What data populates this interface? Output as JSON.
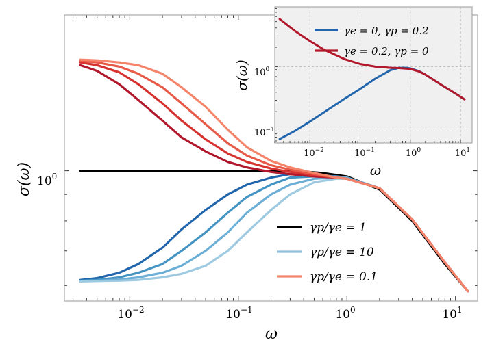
{
  "chart_data": [
    {
      "type": "line",
      "xscale": "log",
      "yscale": "log",
      "xlim": [
        0.0025,
        16
      ],
      "ylim": [
        0.56,
        2.0
      ],
      "xlabel": "ω",
      "ylabel": "σ(ω)",
      "grid": false,
      "legend_position": "lower-right",
      "xticks": [
        {
          "value": 0.01,
          "base": "10",
          "exp": "−2"
        },
        {
          "value": 0.1,
          "base": "10",
          "exp": "−1"
        },
        {
          "value": 1,
          "base": "10",
          "exp": "0"
        },
        {
          "value": 10,
          "base": "10",
          "exp": "1"
        }
      ],
      "yticks": [
        {
          "value": 1,
          "base": "10",
          "exp": "0"
        }
      ],
      "legend": [
        {
          "label": "γp/γe = 1",
          "color": "#000000"
        },
        {
          "label": "γp/γe = 10",
          "color": "#90c0de"
        },
        {
          "label": "γp/γe = 0.1",
          "color": "#f4856b"
        }
      ],
      "series": [
        {
          "name": "γp/γe = 1",
          "color": "#000000",
          "x": [
            0.0035,
            0.3,
            0.6,
            1.0,
            2.0,
            4.0,
            8.0,
            13.0
          ],
          "y": [
            1.0,
            1.0,
            0.99,
            0.975,
            0.92,
            0.8,
            0.66,
            0.585
          ]
        },
        {
          "name": "blue curve 1",
          "color": "#2166ac",
          "x": [
            0.0035,
            0.005,
            0.008,
            0.012,
            0.02,
            0.03,
            0.05,
            0.08,
            0.12,
            0.2,
            0.3,
            0.5,
            0.8,
            1.0,
            2.0,
            4.0,
            8.0,
            13.0
          ],
          "y": [
            0.615,
            0.62,
            0.635,
            0.66,
            0.71,
            0.77,
            0.84,
            0.9,
            0.94,
            0.97,
            0.985,
            0.98,
            0.975,
            0.97,
            0.925,
            0.805,
            0.665,
            0.585
          ]
        },
        {
          "name": "blue curve 2",
          "color": "#4393c3",
          "x": [
            0.0035,
            0.005,
            0.008,
            0.012,
            0.02,
            0.03,
            0.05,
            0.08,
            0.12,
            0.2,
            0.3,
            0.5,
            0.8,
            1.0,
            2.0,
            4.0,
            8.0,
            13.0
          ],
          "y": [
            0.613,
            0.615,
            0.622,
            0.635,
            0.66,
            0.7,
            0.76,
            0.83,
            0.89,
            0.94,
            0.97,
            0.975,
            0.975,
            0.97,
            0.925,
            0.805,
            0.665,
            0.585
          ]
        },
        {
          "name": "blue curve 3",
          "color": "#6baed6",
          "x": [
            0.0035,
            0.005,
            0.008,
            0.012,
            0.02,
            0.03,
            0.05,
            0.08,
            0.12,
            0.2,
            0.3,
            0.5,
            0.8,
            1.0,
            2.0,
            4.0,
            8.0,
            13.0
          ],
          "y": [
            0.612,
            0.613,
            0.616,
            0.622,
            0.635,
            0.655,
            0.7,
            0.76,
            0.83,
            0.9,
            0.94,
            0.965,
            0.97,
            0.97,
            0.925,
            0.805,
            0.665,
            0.585
          ]
        },
        {
          "name": "γp/γe = 10",
          "color": "#9ecae1",
          "x": [
            0.0035,
            0.005,
            0.008,
            0.012,
            0.02,
            0.03,
            0.05,
            0.08,
            0.12,
            0.2,
            0.3,
            0.5,
            0.8,
            1.0,
            2.0,
            4.0,
            8.0,
            13.0
          ],
          "y": [
            0.611,
            0.612,
            0.613,
            0.615,
            0.622,
            0.632,
            0.655,
            0.7,
            0.76,
            0.84,
            0.9,
            0.95,
            0.965,
            0.965,
            0.925,
            0.805,
            0.665,
            0.585
          ]
        },
        {
          "name": "red curve 1",
          "color": "#b2182b",
          "x": [
            0.0035,
            0.005,
            0.008,
            0.012,
            0.02,
            0.03,
            0.05,
            0.08,
            0.12,
            0.2,
            0.3,
            0.5,
            0.8,
            1.0,
            2.0,
            4.0,
            8.0,
            13.0
          ],
          "y": [
            1.6,
            1.56,
            1.47,
            1.37,
            1.25,
            1.16,
            1.09,
            1.04,
            1.015,
            0.995,
            0.985,
            0.975,
            0.97,
            0.965,
            0.925,
            0.805,
            0.665,
            0.585
          ]
        },
        {
          "name": "red curve 2",
          "color": "#d6322f",
          "x": [
            0.0035,
            0.005,
            0.008,
            0.012,
            0.02,
            0.03,
            0.05,
            0.08,
            0.12,
            0.2,
            0.3,
            0.5,
            0.8,
            1.0,
            2.0,
            4.0,
            8.0,
            13.0
          ],
          "y": [
            1.62,
            1.6,
            1.55,
            1.47,
            1.35,
            1.25,
            1.15,
            1.08,
            1.04,
            1.01,
            0.995,
            0.98,
            0.97,
            0.965,
            0.925,
            0.805,
            0.665,
            0.585
          ]
        },
        {
          "name": "red curve 3",
          "color": "#e85a48",
          "x": [
            0.0035,
            0.005,
            0.008,
            0.012,
            0.02,
            0.03,
            0.05,
            0.08,
            0.12,
            0.2,
            0.3,
            0.5,
            0.8,
            1.0,
            2.0,
            4.0,
            8.0,
            13.0
          ],
          "y": [
            1.63,
            1.62,
            1.59,
            1.54,
            1.45,
            1.35,
            1.23,
            1.13,
            1.07,
            1.025,
            1.005,
            0.985,
            0.97,
            0.965,
            0.925,
            0.805,
            0.665,
            0.585
          ]
        },
        {
          "name": "γp/γe = 0.1",
          "color": "#f4856b",
          "x": [
            0.0035,
            0.005,
            0.008,
            0.012,
            0.02,
            0.03,
            0.05,
            0.08,
            0.12,
            0.2,
            0.3,
            0.5,
            0.8,
            1.0,
            2.0,
            4.0,
            8.0,
            13.0
          ],
          "y": [
            1.64,
            1.635,
            1.62,
            1.6,
            1.54,
            1.45,
            1.33,
            1.2,
            1.11,
            1.045,
            1.015,
            0.99,
            0.97,
            0.965,
            0.925,
            0.805,
            0.665,
            0.585
          ]
        }
      ]
    },
    {
      "type": "line",
      "xscale": "log",
      "yscale": "log",
      "xlim": [
        0.002,
        17
      ],
      "ylim": [
        0.065,
        8.5
      ],
      "xlabel": "ω",
      "ylabel": "σ(ω)",
      "grid": true,
      "legend_position": "top-right",
      "xticks": [
        {
          "value": 0.01,
          "base": "10",
          "exp": "−2"
        },
        {
          "value": 0.1,
          "base": "10",
          "exp": "−1"
        },
        {
          "value": 1,
          "base": "10",
          "exp": "0"
        },
        {
          "value": 10,
          "base": "10",
          "exp": "1"
        }
      ],
      "yticks": [
        {
          "value": 0.1,
          "base": "10",
          "exp": "−1"
        },
        {
          "value": 1,
          "base": "10",
          "exp": "0"
        }
      ],
      "legend": [
        {
          "label": "γe = 0,  γp = 0.2",
          "color": "#2166ac"
        },
        {
          "label": "γe = 0.2,  γp = 0",
          "color": "#b2182b"
        }
      ],
      "series": [
        {
          "name": "γe = 0,  γp = 0.2",
          "color": "#2166ac",
          "x": [
            0.0025,
            0.005,
            0.01,
            0.02,
            0.05,
            0.1,
            0.2,
            0.4,
            0.6,
            0.8,
            1.0,
            1.5,
            2.0,
            4.0,
            8.0,
            12.0
          ],
          "y": [
            0.075,
            0.1,
            0.14,
            0.2,
            0.32,
            0.45,
            0.65,
            0.88,
            0.96,
            0.96,
            0.94,
            0.85,
            0.75,
            0.53,
            0.38,
            0.31
          ]
        },
        {
          "name": "γe = 0.2,  γp = 0",
          "color": "#b2182b",
          "x": [
            0.0025,
            0.005,
            0.01,
            0.02,
            0.05,
            0.1,
            0.2,
            0.4,
            0.6,
            1.0,
            1.5,
            2.0,
            4.0,
            8.0,
            12.0
          ],
          "y": [
            5.5,
            3.6,
            2.5,
            1.8,
            1.3,
            1.1,
            1.0,
            0.96,
            0.95,
            0.92,
            0.84,
            0.75,
            0.53,
            0.38,
            0.31
          ]
        }
      ]
    }
  ]
}
